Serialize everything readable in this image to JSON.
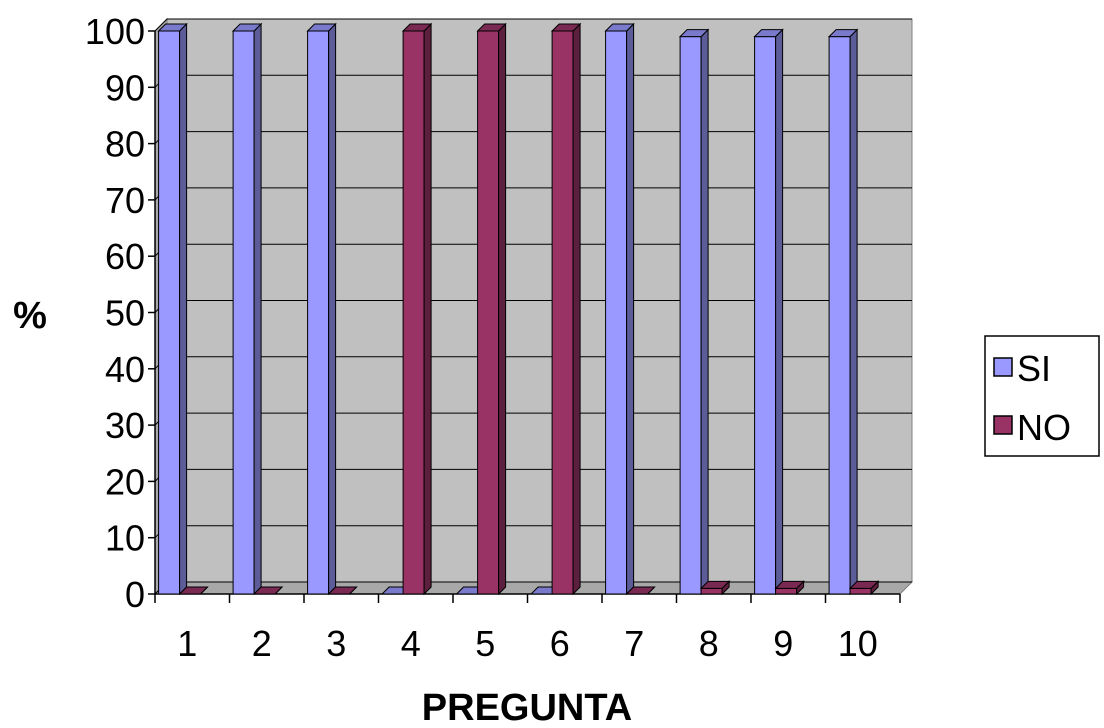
{
  "chart_data": {
    "type": "bar",
    "categories": [
      "1",
      "2",
      "3",
      "4",
      "5",
      "6",
      "7",
      "8",
      "9",
      "10"
    ],
    "series": [
      {
        "name": "SI",
        "values": [
          100,
          100,
          100,
          0,
          0,
          0,
          100,
          99,
          99,
          99
        ],
        "color": "#9999ff"
      },
      {
        "name": "NO",
        "values": [
          0,
          0,
          0,
          100,
          100,
          100,
          0,
          1,
          1,
          1
        ],
        "color": "#993366"
      }
    ],
    "ylim": [
      0,
      100
    ],
    "yticks": [
      "0",
      "10",
      "20",
      "30",
      "40",
      "50",
      "60",
      "70",
      "80",
      "90",
      "100"
    ],
    "xlabel": "PREGUNTA",
    "ylabel": "%",
    "grid": true,
    "legend_position": "right",
    "plot_background": "#c0c0c0"
  }
}
